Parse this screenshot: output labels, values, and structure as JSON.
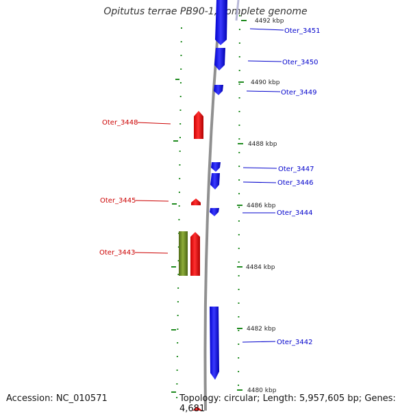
{
  "title": "Opitutus terrae PB90-1, complete genome",
  "footer": {
    "accession": "Accession: NC_010571",
    "summary": "Topology: circular; Length: 5,957,605 bp; Genes: 4,681"
  },
  "colors": {
    "forward_strand": "#1a1aff",
    "reverse_strand": "#ff1a1a",
    "rrna_or_other": "#6b8e23",
    "backbone": "#909090",
    "tick": "#1e8a1e"
  },
  "ticks": [
    "4492 kbp",
    "4490 kbp",
    "4488 kbp",
    "4486 kbp",
    "4484 kbp",
    "4482 kbp",
    "4480 kbp"
  ],
  "genes": [
    {
      "label": "Oter_3451",
      "strand": "forward"
    },
    {
      "label": "Oter_3450",
      "strand": "forward"
    },
    {
      "label": "Oter_3449",
      "strand": "forward"
    },
    {
      "label": "Oter_3448",
      "strand": "reverse"
    },
    {
      "label": "Oter_3447",
      "strand": "forward"
    },
    {
      "label": "Oter_3446",
      "strand": "forward"
    },
    {
      "label": "Oter_3445",
      "strand": "reverse"
    },
    {
      "label": "Oter_3444",
      "strand": "forward"
    },
    {
      "label": "Oter_3443",
      "strand": "reverse"
    },
    {
      "label": "Oter_3442",
      "strand": "forward"
    }
  ]
}
